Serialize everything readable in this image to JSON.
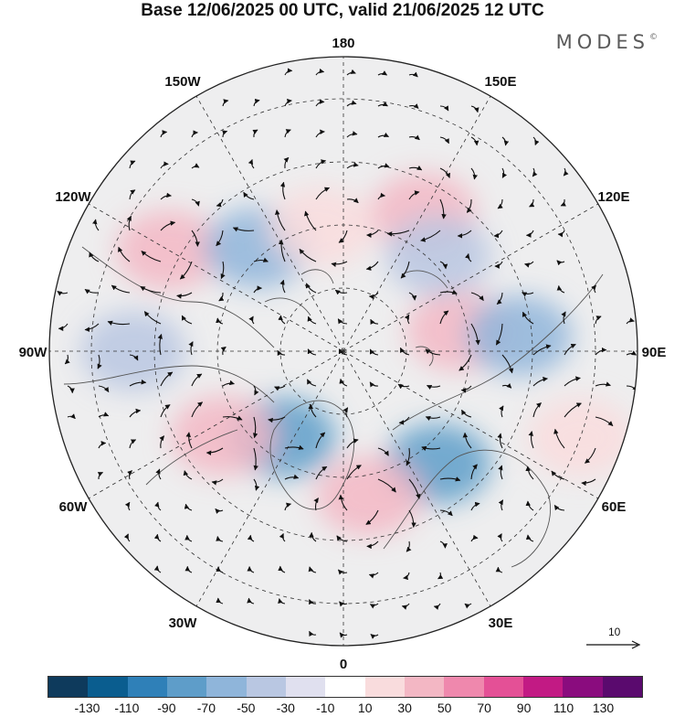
{
  "title": "Base 12/06/2025 00 UTC, valid 21/06/2025 12 UTC",
  "brand": {
    "name": "MODES",
    "mark": "©"
  },
  "map": {
    "projection": "north-polar-stereographic",
    "longitude_labels": [
      "180",
      "150E",
      "120E",
      "90E",
      "60E",
      "30E",
      "0",
      "30W",
      "60W",
      "90W",
      "120W",
      "150W"
    ],
    "vector_scale_label": "10",
    "colors": {
      "ocean_background": "#ffffff",
      "land_outline": "#555555",
      "grid_lines": "#333333"
    },
    "anomaly_centers": [
      {
        "lon": 150,
        "lat": 52,
        "level": 50
      },
      {
        "lon": -120,
        "lat": 42,
        "level": 50
      },
      {
        "lon": -140,
        "lat": 58,
        "level": -50
      },
      {
        "lon": 100,
        "lat": 62,
        "level": 50
      },
      {
        "lon": 95,
        "lat": 48,
        "level": -50
      },
      {
        "lon": 40,
        "lat": 55,
        "level": -70
      },
      {
        "lon": 10,
        "lat": 55,
        "level": 50
      },
      {
        "lon": -35,
        "lat": 65,
        "level": -70
      },
      {
        "lon": -55,
        "lat": 55,
        "level": 50
      },
      {
        "lon": -90,
        "lat": 40,
        "level": -30
      },
      {
        "lon": 70,
        "lat": 30,
        "level": 30
      },
      {
        "lon": -170,
        "lat": 60,
        "level": 30
      },
      {
        "lon": 135,
        "lat": 58,
        "level": -30
      }
    ]
  },
  "colorbar": {
    "ticks": [
      "-130",
      "-110",
      "-90",
      "-70",
      "-50",
      "-30",
      "-10",
      "10",
      "30",
      "50",
      "70",
      "90",
      "110",
      "130"
    ],
    "colors": [
      "#0e3a5c",
      "#0a5d8f",
      "#2f80b8",
      "#5e9dc9",
      "#8fb5da",
      "#b9c7e2",
      "#e0e0ef",
      "#ffffff",
      "#f9dcdd",
      "#f3b7c4",
      "#ef88ad",
      "#e45096",
      "#c21a84",
      "#8a0c7e",
      "#5a0a6e"
    ]
  }
}
